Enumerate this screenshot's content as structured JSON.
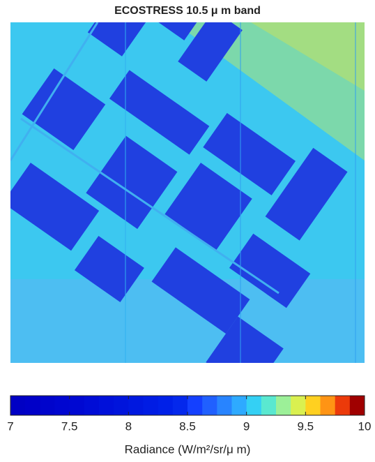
{
  "chart_data": {
    "type": "heatmap",
    "title": "ECOSTRESS 10.5 μ m band",
    "colorbar_label": "Radiance (W/m²/sr/μ m)",
    "xlim": [
      7,
      10
    ],
    "xticks": [
      7,
      7.5,
      8,
      8.5,
      9,
      9.5,
      10
    ],
    "colormap": [
      "#0000c4",
      "#0000c8",
      "#0004cc",
      "#0006d0",
      "#0008d2",
      "#000cd6",
      "#0010da",
      "#0014dc",
      "#0018e0",
      "#001ce4",
      "#0020e8",
      "#0428ec",
      "#1440ff",
      "#2060ff",
      "#2884ff",
      "#2eaaff",
      "#34d0f4",
      "#5ae8d0",
      "#9cf098",
      "#daf050",
      "#ffd020",
      "#ff9414",
      "#ec3a0a",
      "#a00000"
    ]
  }
}
